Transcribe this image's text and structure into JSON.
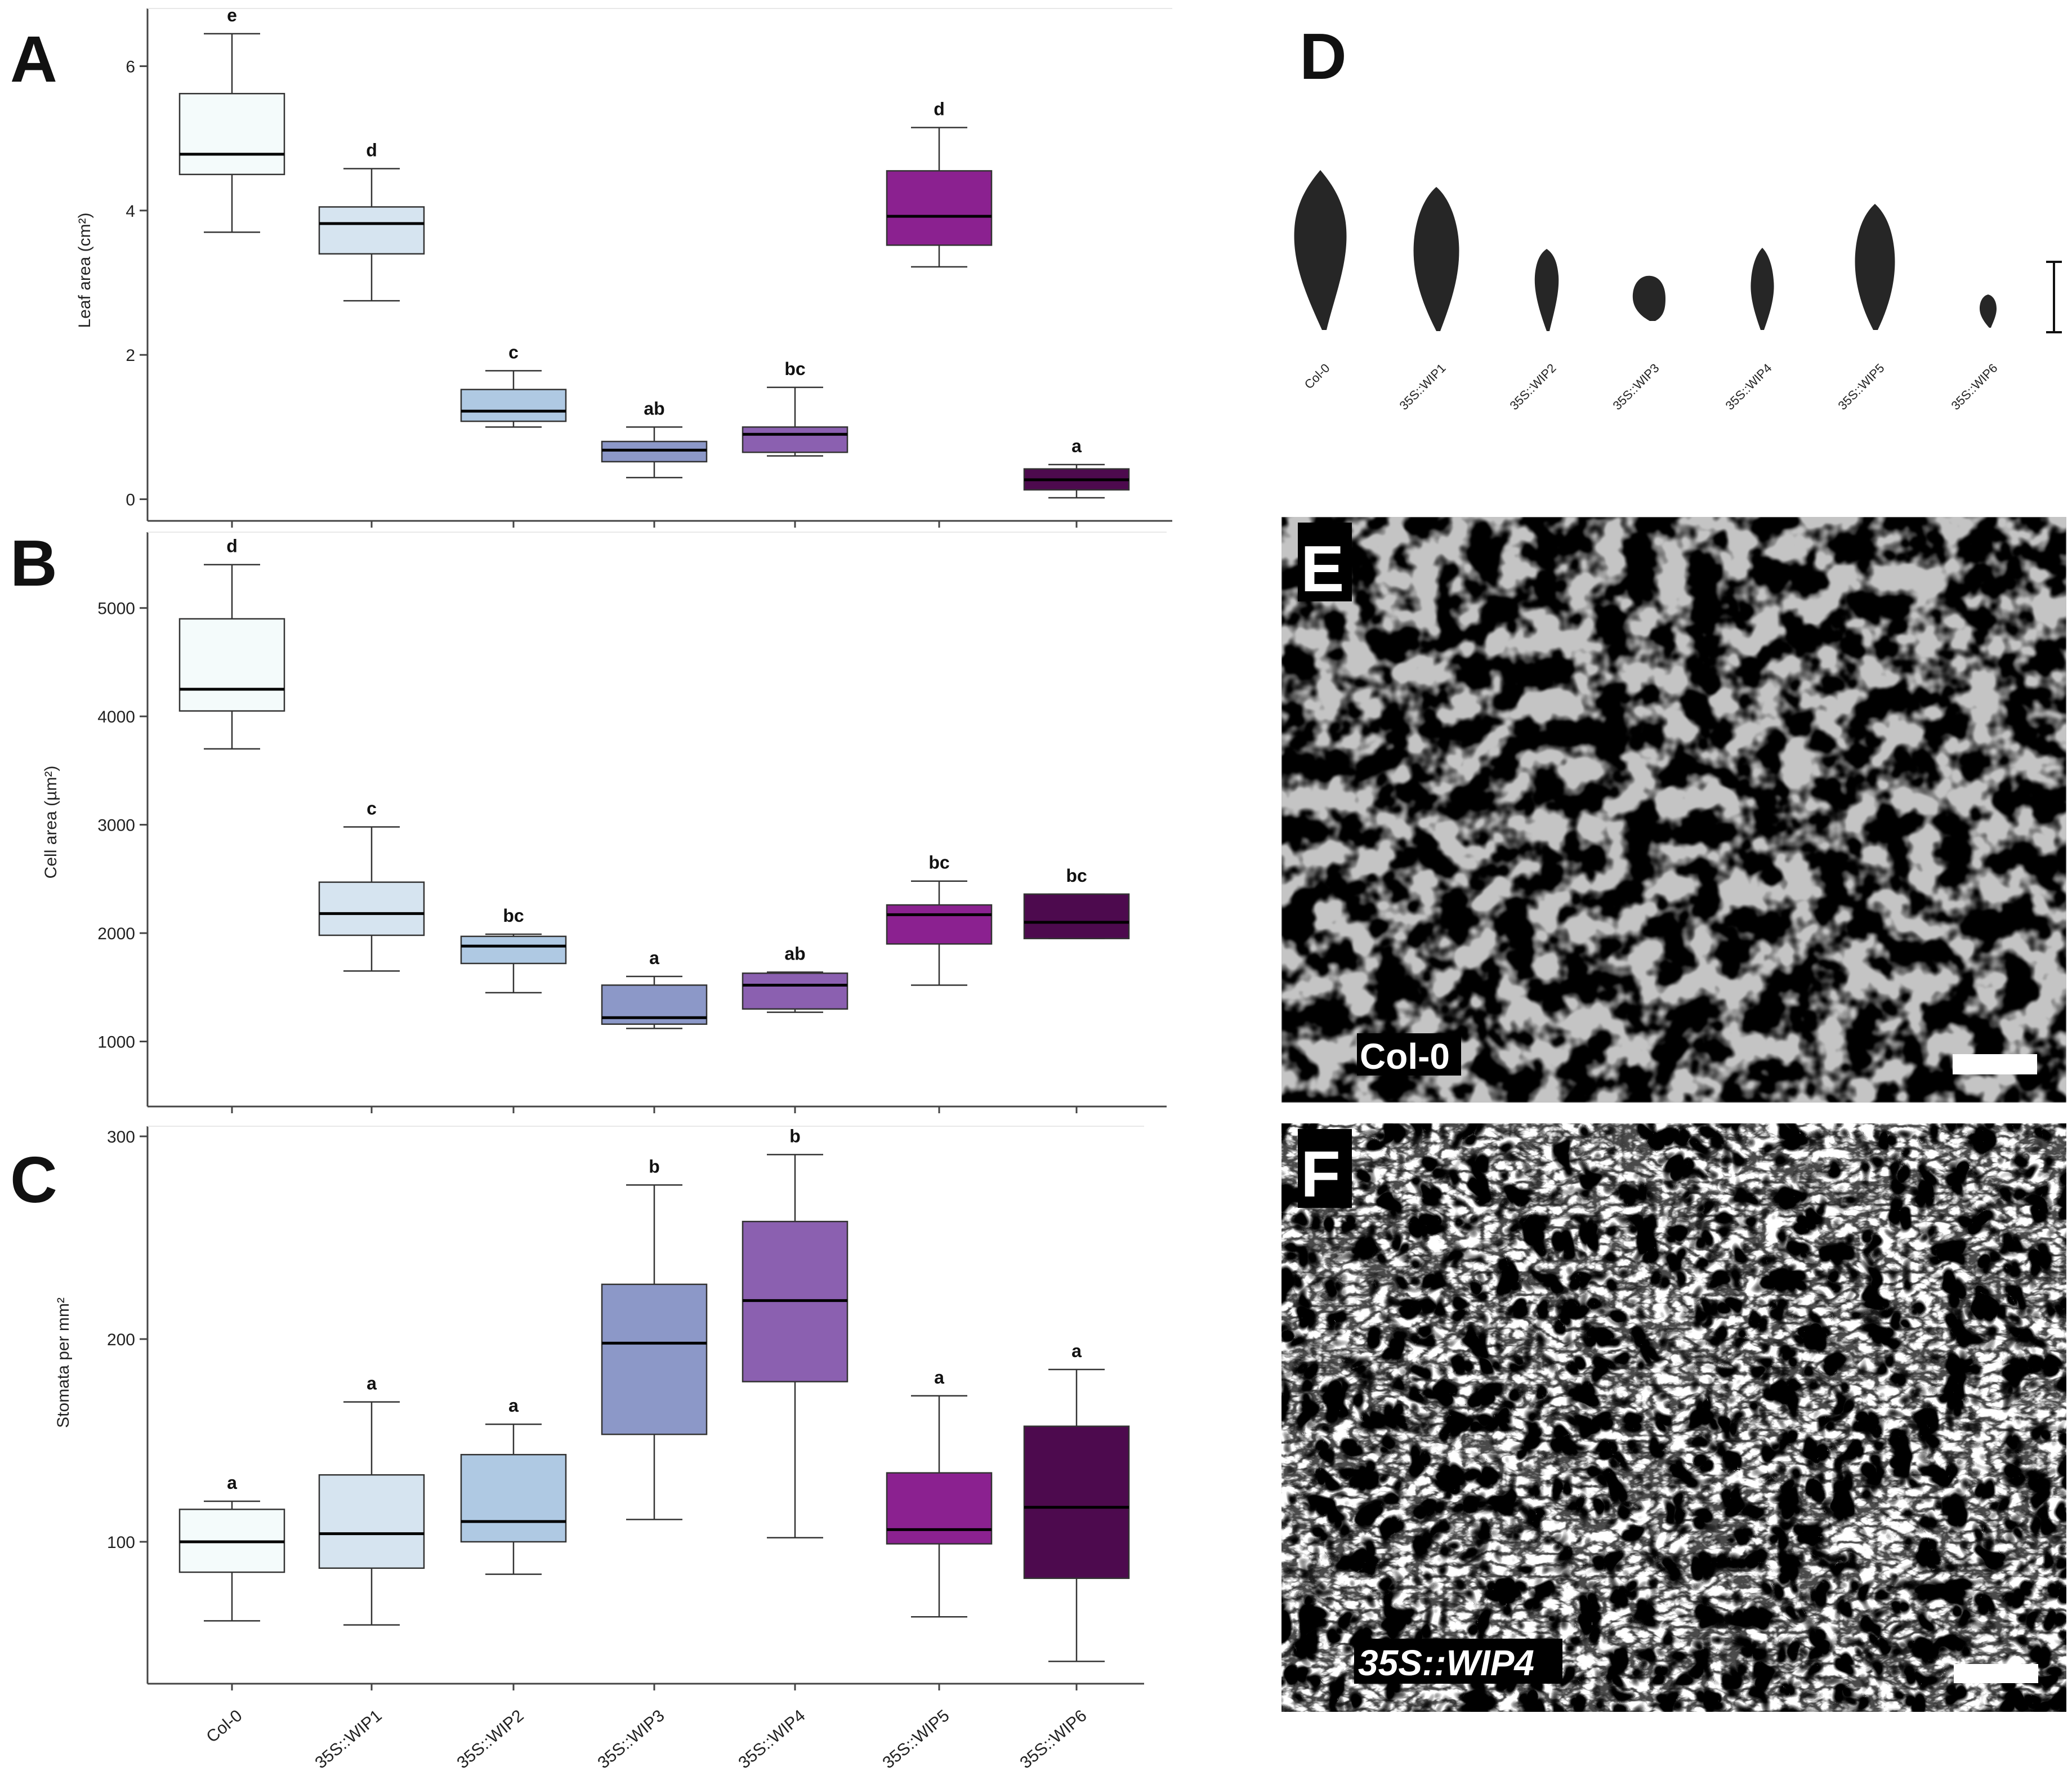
{
  "panel_letters": {
    "a": "A",
    "b": "B",
    "c": "C",
    "d": "D",
    "e": "E",
    "f": "F"
  },
  "axis_labels": {
    "leaf_area": "Leaf area (cm²)",
    "cell_area": "Cell area (µm²)",
    "stomata": "Stomata per mm²"
  },
  "categories": [
    "Col-0",
    "35S::WIP1",
    "35S::WIP2",
    "35S::WIP3",
    "35S::WIP4",
    "35S::WIP5",
    "35S::WIP6"
  ],
  "box_colors": [
    "#f4fbfb",
    "#d6e4f0",
    "#afc9e3",
    "#8c98c8",
    "#8b60b0",
    "#8b2190",
    "#4d0a4e"
  ],
  "chart_data": [
    {
      "id": "A",
      "type": "box",
      "ylabel": "Leaf area (cm²)",
      "ylim": [
        -0.3,
        6.8
      ],
      "yticks": [
        0,
        2,
        4,
        6
      ],
      "categories": [
        "Col-0",
        "35S::WIP1",
        "35S::WIP2",
        "35S::WIP3",
        "35S::WIP4",
        "35S::WIP5",
        "35S::WIP6"
      ],
      "boxes": [
        {
          "min": 3.7,
          "q1": 4.5,
          "median": 4.78,
          "q3": 5.62,
          "max": 6.45,
          "sig": "e"
        },
        {
          "min": 2.75,
          "q1": 3.4,
          "median": 3.82,
          "q3": 4.05,
          "max": 4.58,
          "sig": "d"
        },
        {
          "min": 1.0,
          "q1": 1.08,
          "median": 1.22,
          "q3": 1.52,
          "max": 1.78,
          "sig": "c"
        },
        {
          "min": 0.3,
          "q1": 0.52,
          "median": 0.68,
          "q3": 0.8,
          "max": 1.0,
          "sig": "ab"
        },
        {
          "min": 0.6,
          "q1": 0.65,
          "median": 0.9,
          "q3": 1.0,
          "max": 1.55,
          "sig": "bc"
        },
        {
          "min": 3.22,
          "q1": 3.52,
          "median": 3.92,
          "q3": 4.55,
          "max": 5.15,
          "sig": "d"
        },
        {
          "min": 0.02,
          "q1": 0.13,
          "median": 0.27,
          "q3": 0.42,
          "max": 0.48,
          "sig": "a"
        }
      ]
    },
    {
      "id": "B",
      "type": "box",
      "ylabel": "Cell area (µm²)",
      "ylim": [
        400,
        5700
      ],
      "yticks": [
        1000,
        2000,
        3000,
        4000,
        5000
      ],
      "categories": [
        "Col-0",
        "35S::WIP1",
        "35S::WIP2",
        "35S::WIP3",
        "35S::WIP4",
        "35S::WIP5",
        "35S::WIP6"
      ],
      "boxes": [
        {
          "min": 3700,
          "q1": 4050,
          "median": 4250,
          "q3": 4900,
          "max": 5400,
          "sig": "d"
        },
        {
          "min": 1650,
          "q1": 1980,
          "median": 2180,
          "q3": 2470,
          "max": 2980,
          "sig": "c"
        },
        {
          "min": 1450,
          "q1": 1720,
          "median": 1880,
          "q3": 1970,
          "max": 1990,
          "sig": "bc"
        },
        {
          "min": 1120,
          "q1": 1160,
          "median": 1220,
          "q3": 1520,
          "max": 1600,
          "sig": "a"
        },
        {
          "min": 1270,
          "q1": 1300,
          "median": 1520,
          "q3": 1630,
          "max": 1640,
          "sig": "ab"
        },
        {
          "min": 1520,
          "q1": 1900,
          "median": 2170,
          "q3": 2260,
          "max": 2480,
          "sig": "bc"
        },
        {
          "min": 1950,
          "q1": 1950,
          "median": 2100,
          "q3": 2360,
          "max": 2360,
          "sig": "bc"
        }
      ]
    },
    {
      "id": "C",
      "type": "box",
      "ylabel": "Stomata per mm²",
      "ylim": [
        30,
        305
      ],
      "yticks": [
        100,
        200,
        300
      ],
      "categories": [
        "Col-0",
        "35S::WIP1",
        "35S::WIP2",
        "35S::WIP3",
        "35S::WIP4",
        "35S::WIP5",
        "35S::WIP6"
      ],
      "boxes": [
        {
          "min": 61,
          "q1": 85,
          "median": 100,
          "q3": 116,
          "max": 120,
          "sig": "a"
        },
        {
          "min": 59,
          "q1": 87,
          "median": 104,
          "q3": 133,
          "max": 169,
          "sig": "a"
        },
        {
          "min": 84,
          "q1": 100,
          "median": 110,
          "q3": 143,
          "max": 158,
          "sig": "a"
        },
        {
          "min": 111,
          "q1": 153,
          "median": 198,
          "q3": 227,
          "max": 276,
          "sig": "b"
        },
        {
          "min": 102,
          "q1": 179,
          "median": 219,
          "q3": 258,
          "max": 291,
          "sig": "b"
        },
        {
          "min": 63,
          "q1": 99,
          "median": 106,
          "q3": 134,
          "max": 172,
          "sig": "a"
        },
        {
          "min": 41,
          "q1": 82,
          "median": 117,
          "q3": 157,
          "max": 185,
          "sig": "a"
        }
      ]
    }
  ],
  "panel_d": {
    "leaf_labels": [
      "Col-0",
      "35S::WIP1",
      "35S::WIP2",
      "35S::WIP3",
      "35S::WIP4",
      "35S::WIP5",
      "35S::WIP6"
    ]
  },
  "panel_e": {
    "label": "Col-0"
  },
  "panel_f": {
    "label": "35S::WIP4"
  }
}
